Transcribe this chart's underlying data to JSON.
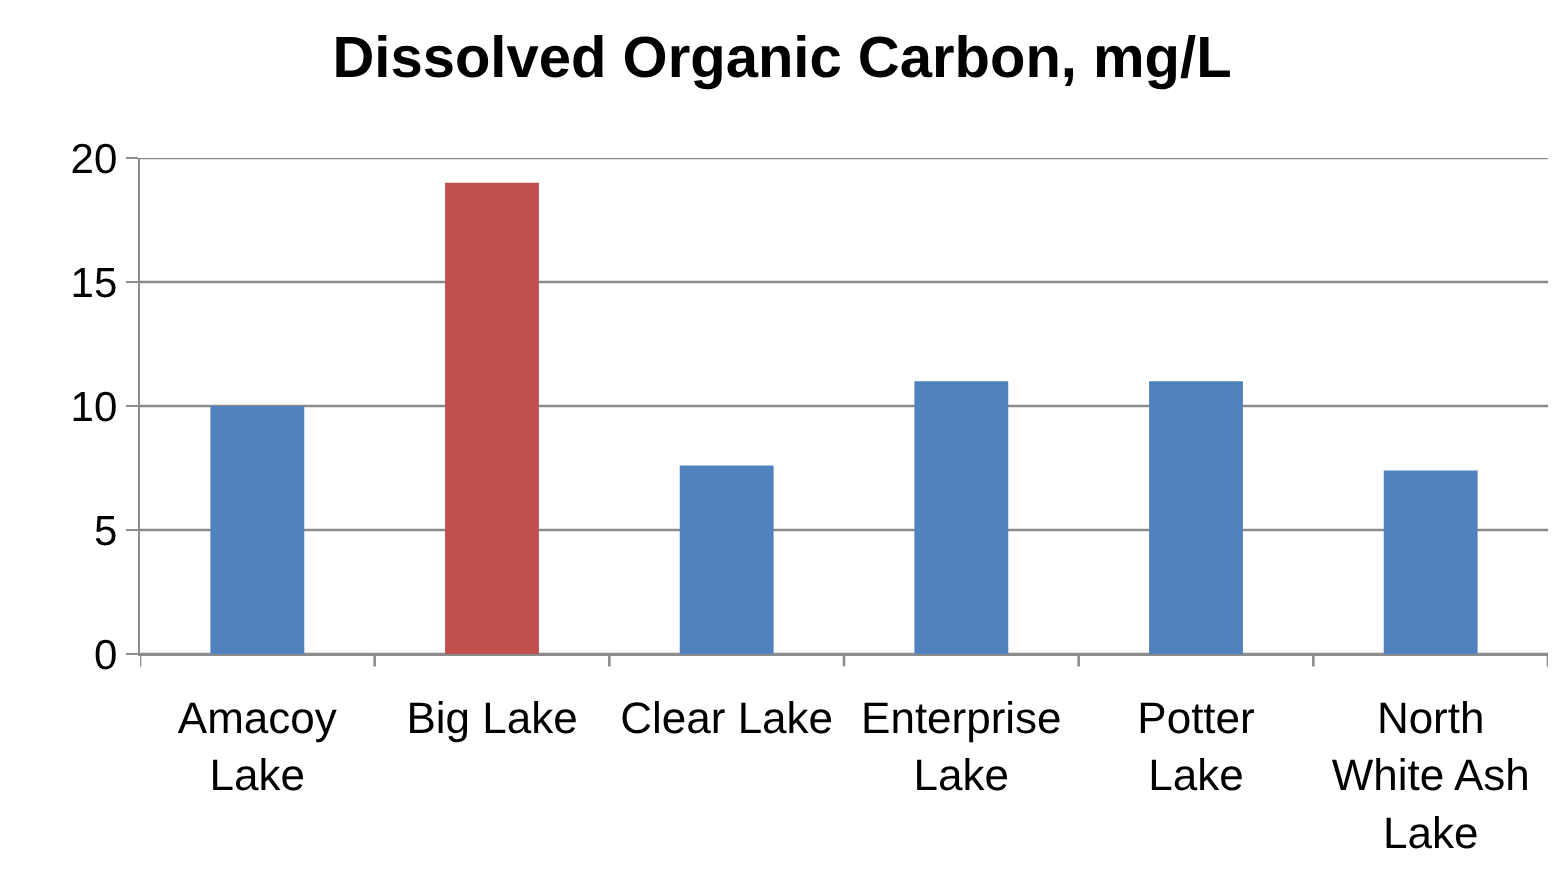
{
  "chart_data": {
    "type": "bar",
    "title": "Dissolved Organic Carbon, mg/L",
    "categories": [
      "Amacoy Lake",
      "Big Lake",
      "Clear Lake",
      "Enterprise Lake",
      "Potter Lake",
      "North White Ash Lake"
    ],
    "values": [
      10,
      19,
      7.6,
      11,
      11,
      7.4
    ],
    "colors": [
      "#4f81bd",
      "#c0504d",
      "#4f81bd",
      "#4f81bd",
      "#4f81bd",
      "#4f81bd"
    ],
    "ylim": [
      0,
      20
    ],
    "yticks": [
      0,
      5,
      10,
      15,
      20
    ],
    "grid": "y"
  }
}
